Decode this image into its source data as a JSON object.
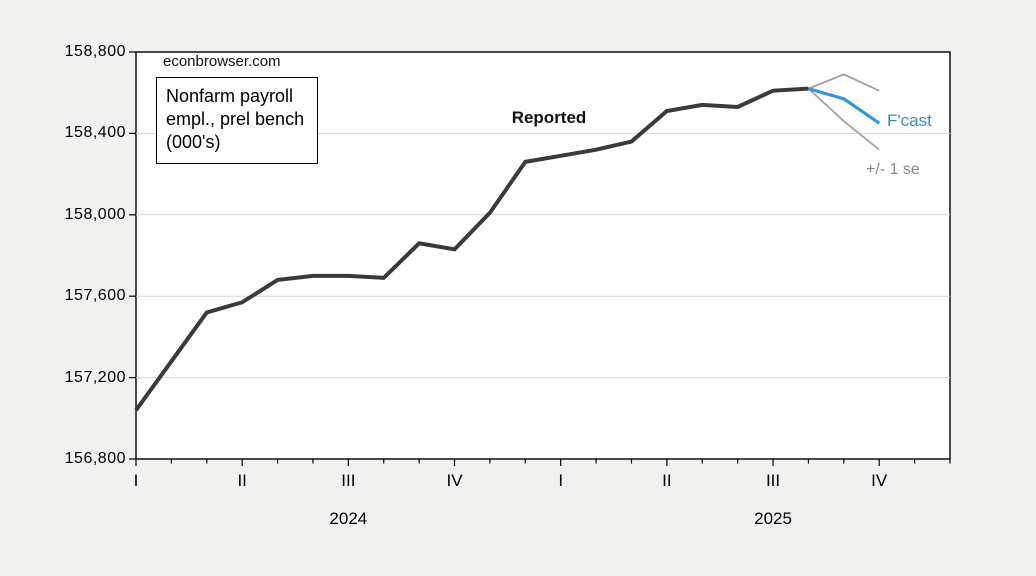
{
  "page": {
    "background": "#f1f1f0"
  },
  "labels": {
    "watermark": "econbrowser.com",
    "series_box": "Nonfarm payroll\nempl., prel bench\n(000's)",
    "reported": "Reported",
    "forecast": "F'cast",
    "se_band": "+/- 1 se"
  },
  "colors": {
    "reported_line": "#3a3a3a",
    "forecast_line": "#3397d5",
    "se_line": "#a2a2a2",
    "forecast_text": "#2e8fd0",
    "se_text": "#8a8a8a",
    "frame": "#000000",
    "gridline": "#d4d4d4",
    "plot_background": "#ffffff"
  },
  "chart_data": {
    "type": "line",
    "title": "Nonfarm payroll empl., prel bench (000's)",
    "xlabel": "",
    "ylabel": "",
    "x_unit": "month",
    "x_start": "2024-01",
    "x_end": "2025-12",
    "n_months": 24,
    "ylim": [
      156800,
      158800
    ],
    "grid": "horizontal",
    "legend_position": "inline-annotations",
    "y_ticks": [
      {
        "value": 156800,
        "label": "156,800"
      },
      {
        "value": 157200,
        "label": "157,200"
      },
      {
        "value": 157600,
        "label": "157,600"
      },
      {
        "value": 158000,
        "label": "158,000"
      },
      {
        "value": 158400,
        "label": "158,400"
      },
      {
        "value": 158800,
        "label": "158,800"
      }
    ],
    "y_gridlines": [
      157200,
      157600,
      158000,
      158400
    ],
    "x_quarter_labels": [
      {
        "label": "I",
        "index": 0
      },
      {
        "label": "II",
        "index": 3
      },
      {
        "label": "III",
        "index": 6
      },
      {
        "label": "IV",
        "index": 9
      },
      {
        "label": "I",
        "index": 12
      },
      {
        "label": "II",
        "index": 15
      },
      {
        "label": "III",
        "index": 18
      },
      {
        "label": "IV",
        "index": 21
      }
    ],
    "year_labels": [
      {
        "label": "2024",
        "index": 6
      },
      {
        "label": "2025",
        "index": 18
      }
    ],
    "series": [
      {
        "id": "reported",
        "name": "Reported",
        "color": "#3a3a3a",
        "width": 4,
        "start_index": 0,
        "start_month": "2024-01",
        "values": [
          157040,
          157280,
          157520,
          157570,
          157680,
          157700,
          157700,
          157690,
          157860,
          157830,
          158010,
          158260,
          158290,
          158320,
          158360,
          158510,
          158540,
          158530,
          158610,
          158620
        ]
      },
      {
        "id": "forecast",
        "name": "F'cast",
        "color": "#3397d5",
        "width": 3.2,
        "start_index": 19,
        "start_month": "2025-08",
        "values": [
          158620,
          158570,
          158450
        ]
      },
      {
        "id": "upper-se",
        "name": "+1 se",
        "color": "#a2a2a2",
        "width": 1.8,
        "start_index": 19,
        "start_month": "2025-08",
        "values": [
          158620,
          158690,
          158610
        ]
      },
      {
        "id": "lower-se",
        "name": "-1 se",
        "color": "#a2a2a2",
        "width": 1.8,
        "start_index": 19,
        "start_month": "2025-08",
        "values": [
          158620,
          158460,
          158320
        ]
      }
    ]
  }
}
